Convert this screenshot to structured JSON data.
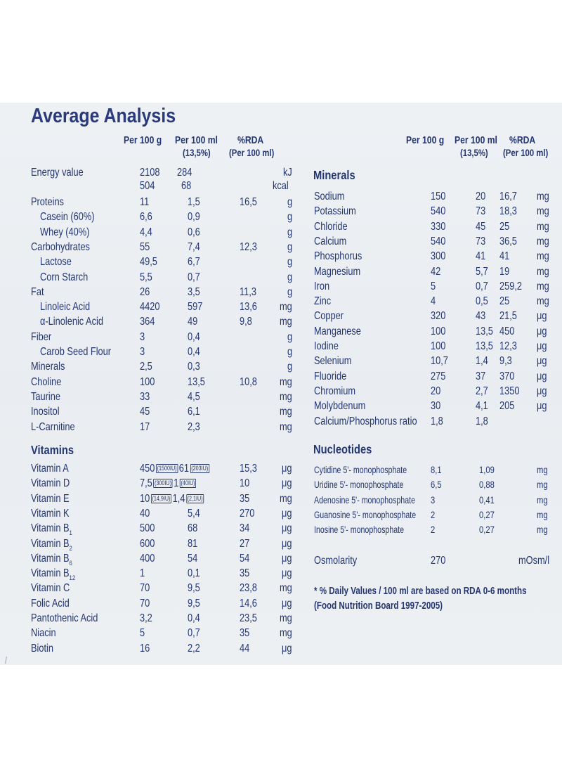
{
  "title": "Average Analysis",
  "headers": {
    "per_100g": "Per 100 g",
    "per_100ml": "Per 100 ml",
    "per_100ml_sub": "(13,5%)",
    "rda": "%RDA",
    "rda_sub": "(Per 100 ml)",
    "rda_sub_right": "(Per 100 ml)"
  },
  "energy": {
    "label": "Energy value",
    "kj": {
      "g": "2108",
      "ml": "284",
      "unit": "kJ"
    },
    "kcal": {
      "g": "504",
      "ml": "68",
      "unit": "kcal"
    }
  },
  "left_rows": [
    {
      "label": "Proteins",
      "g": "11",
      "ml": "1,5",
      "rda": "16,5",
      "unit": "g"
    },
    {
      "label": "Casein (60%)",
      "g": "6,6",
      "ml": "0,9",
      "rda": "",
      "unit": "g"
    },
    {
      "label": "Whey (40%)",
      "g": "4,4",
      "ml": "0,6",
      "rda": "",
      "unit": "g"
    },
    {
      "label": "Carbohydrates",
      "g": "55",
      "ml": "7,4",
      "rda": "12,3",
      "unit": "g"
    },
    {
      "label": "Lactose",
      "g": "49,5",
      "ml": "6,7",
      "rda": "",
      "unit": "g"
    },
    {
      "label": "Corn Starch",
      "g": "5,5",
      "ml": "0,7",
      "rda": "",
      "unit": "g"
    },
    {
      "label": "Fat",
      "g": "26",
      "ml": "3,5",
      "rda": "11,3",
      "unit": "g"
    },
    {
      "label": "Linoleic Acid",
      "g": "4420",
      "ml": "597",
      "rda": "13,6",
      "unit": "mg"
    },
    {
      "label": "α-Linolenic Acid",
      "g": "364",
      "ml": "49",
      "rda": "9,8",
      "unit": "mg"
    },
    {
      "label": "Fiber",
      "g": "3",
      "ml": "0,4",
      "rda": "",
      "unit": "g"
    },
    {
      "label": "Carob Seed Flour",
      "g": "3",
      "ml": "0,4",
      "rda": "",
      "unit": "g"
    },
    {
      "label": "Minerals",
      "g": "2,5",
      "ml": "0,3",
      "rda": "",
      "unit": "g"
    },
    {
      "label": "Choline",
      "g": "100",
      "ml": "13,5",
      "rda": "10,8",
      "unit": "mg"
    },
    {
      "label": "Taurine",
      "g": "33",
      "ml": "4,5",
      "rda": "",
      "unit": "mg"
    },
    {
      "label": "Inositol",
      "g": "45",
      "ml": "6,1",
      "rda": "",
      "unit": "mg"
    },
    {
      "label": "L-Carnitine",
      "g": "17",
      "ml": "2,3",
      "rda": "",
      "unit": "mg"
    }
  ],
  "vitamins": {
    "title": "Vitamins",
    "rows": [
      {
        "label": "Vitamin A",
        "g": "450",
        "g_iu": "(1500IU)",
        "ml": "61",
        "ml_iu": "(203IU)",
        "rda": "15,3",
        "unit": "μg"
      },
      {
        "label": "Vitamin D",
        "g": "7,5",
        "g_iu": "(300IU)",
        "ml": "1",
        "ml_iu": "(40IU)",
        "rda": "10",
        "unit": "μg"
      },
      {
        "label": "Vitamin E",
        "g": "10",
        "g_iu": "(14,9IU)",
        "ml": "1,4",
        "ml_iu": "(2,1IU)",
        "rda": "35",
        "unit": "mg"
      },
      {
        "label": "Vitamin K",
        "g": "40",
        "ml": "5,4",
        "rda": "270",
        "unit": "μg"
      },
      {
        "label": "Vitamin B",
        "sub": "1",
        "g": "500",
        "ml": "68",
        "rda": "34",
        "unit": "μg"
      },
      {
        "label": "Vitamin B",
        "sub": "2",
        "g": "600",
        "ml": "81",
        "rda": "27",
        "unit": "μg"
      },
      {
        "label": "Vitamin B",
        "sub": "6",
        "g": "400",
        "ml": "54",
        "rda": "54",
        "unit": "μg"
      },
      {
        "label": "Vitamin B",
        "sub": "12",
        "g": "1",
        "ml": "0,1",
        "rda": "35",
        "unit": "μg"
      },
      {
        "label": "Vitamin C",
        "g": "70",
        "ml": "9,5",
        "rda": "23,8",
        "unit": "mg"
      },
      {
        "label": "Folic Acid",
        "g": "70",
        "ml": "9,5",
        "rda": "14,6",
        "unit": "μg"
      },
      {
        "label": "Pantothenic Acid",
        "g": "3,2",
        "ml": "0,4",
        "rda": "23,5",
        "unit": "mg"
      },
      {
        "label": "Niacin",
        "g": "5",
        "ml": "0,7",
        "rda": "35",
        "unit": "mg"
      },
      {
        "label": "Biotin",
        "g": "16",
        "ml": "2,2",
        "rda": "44",
        "unit": "μg"
      }
    ]
  },
  "minerals": {
    "title": "Minerals",
    "rows": [
      {
        "label": "Sodium",
        "g": "150",
        "ml": "20",
        "rda": "16,7",
        "unit": "mg"
      },
      {
        "label": "Potassium",
        "g": "540",
        "ml": "73",
        "rda": "18,3",
        "unit": "mg"
      },
      {
        "label": "Chloride",
        "g": "330",
        "ml": "45",
        "rda": "25",
        "unit": "mg"
      },
      {
        "label": "Calcium",
        "g": "540",
        "ml": "73",
        "rda": "36,5",
        "unit": "mg"
      },
      {
        "label": "Phosphorus",
        "g": "300",
        "ml": "41",
        "rda": "41",
        "unit": "mg"
      },
      {
        "label": "Magnesium",
        "g": "42",
        "ml": "5,7",
        "rda": "19",
        "unit": "mg"
      },
      {
        "label": "Iron",
        "g": "5",
        "ml": "0,7",
        "rda": "259,2",
        "unit": "mg"
      },
      {
        "label": "Zinc",
        "g": "4",
        "ml": "0,5",
        "rda": "25",
        "unit": "mg"
      },
      {
        "label": "Copper",
        "g": "320",
        "ml": "43",
        "rda": "21,5",
        "unit": "μg"
      },
      {
        "label": "Manganese",
        "g": "100",
        "ml": "13,5",
        "rda": "450",
        "unit": "μg"
      },
      {
        "label": "Iodine",
        "g": "100",
        "ml": "13,5",
        "rda": "12,3",
        "unit": "μg"
      },
      {
        "label": "Selenium",
        "g": "10,7",
        "ml": "1,4",
        "rda": "9,3",
        "unit": "μg"
      },
      {
        "label": "Fluoride",
        "g": "275",
        "ml": "37",
        "rda": "370",
        "unit": "μg"
      },
      {
        "label": "Chromium",
        "g": "20",
        "ml": "2,7",
        "rda": "1350",
        "unit": "μg"
      },
      {
        "label": "Molybdenum",
        "g": "30",
        "ml": "4,1",
        "rda": "205",
        "unit": "μg"
      },
      {
        "label": "Calcium/Phosphorus ratio",
        "g": "1,8",
        "ml": "1,8",
        "rda": "",
        "unit": ""
      }
    ]
  },
  "nucleotides": {
    "title": "Nucleotides",
    "rows": [
      {
        "label": "Cytidine 5'- monophosphate",
        "g": "8,1",
        "ml": "1,09",
        "unit": "mg"
      },
      {
        "label": "Uridine 5'- monophosphate",
        "g": "6,5",
        "ml": "0,88",
        "unit": "mg"
      },
      {
        "label": "Adenosine 5'- monophosphate",
        "g": "3",
        "ml": "0,41",
        "unit": "mg"
      },
      {
        "label": "Guanosine 5'- monophosphate",
        "g": "2",
        "ml": "0,27",
        "unit": "mg"
      },
      {
        "label": "Inosine 5'- monophosphate",
        "g": "2",
        "ml": "0,27",
        "unit": "mg"
      }
    ]
  },
  "osmolarity": {
    "label": "Osmolarity",
    "value": "270",
    "unit": "mOsm/l"
  },
  "footnote": {
    "line1": "* % Daily Values / 100 ml are based on RDA 0-6 months",
    "line2": "(Food Nutrition Board 1997-2005)"
  },
  "colors": {
    "text": "#243672",
    "panel": "#eceff3",
    "background": "#ffffff"
  }
}
